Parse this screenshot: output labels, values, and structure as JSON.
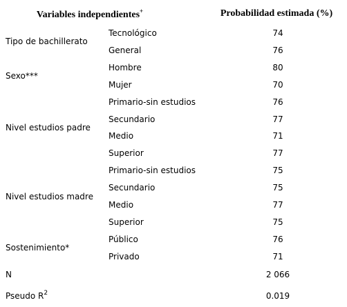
{
  "header": {
    "variables": "Variables independientes",
    "variables_sup": "+",
    "probability": "Probabilidad estimada (%)"
  },
  "groups": [
    {
      "label": "Tipo de bachillerato",
      "rows": [
        {
          "category": "Tecnológico",
          "value": 74
        },
        {
          "category": "General",
          "value": 76
        }
      ]
    },
    {
      "label": "Sexo***",
      "rows": [
        {
          "category": "Hombre",
          "value": 80
        },
        {
          "category": "Mujer",
          "value": 70
        }
      ]
    },
    {
      "label": "Nivel estudios padre",
      "rows": [
        {
          "category": "Primario-sin estudios",
          "value": 76
        },
        {
          "category": "Secundario",
          "value": 77
        },
        {
          "category": "Medio",
          "value": 71
        },
        {
          "category": "Superior",
          "value": 77
        }
      ]
    },
    {
      "label": "Nivel estudios madre",
      "rows": [
        {
          "category": "Primario-sin estudios",
          "value": 75
        },
        {
          "category": "Secundario",
          "value": 75
        },
        {
          "category": "Medio",
          "value": 77
        },
        {
          "category": "Superior",
          "value": 75
        }
      ]
    },
    {
      "label": "Sostenimiento*",
      "rows": [
        {
          "category": "Público",
          "value": 76
        },
        {
          "category": "Privado",
          "value": 71
        }
      ]
    }
  ],
  "footer": [
    {
      "label": "N",
      "value": "2 066"
    },
    {
      "label": "Pseudo R",
      "label_sup": "2",
      "value": "0.019"
    }
  ]
}
